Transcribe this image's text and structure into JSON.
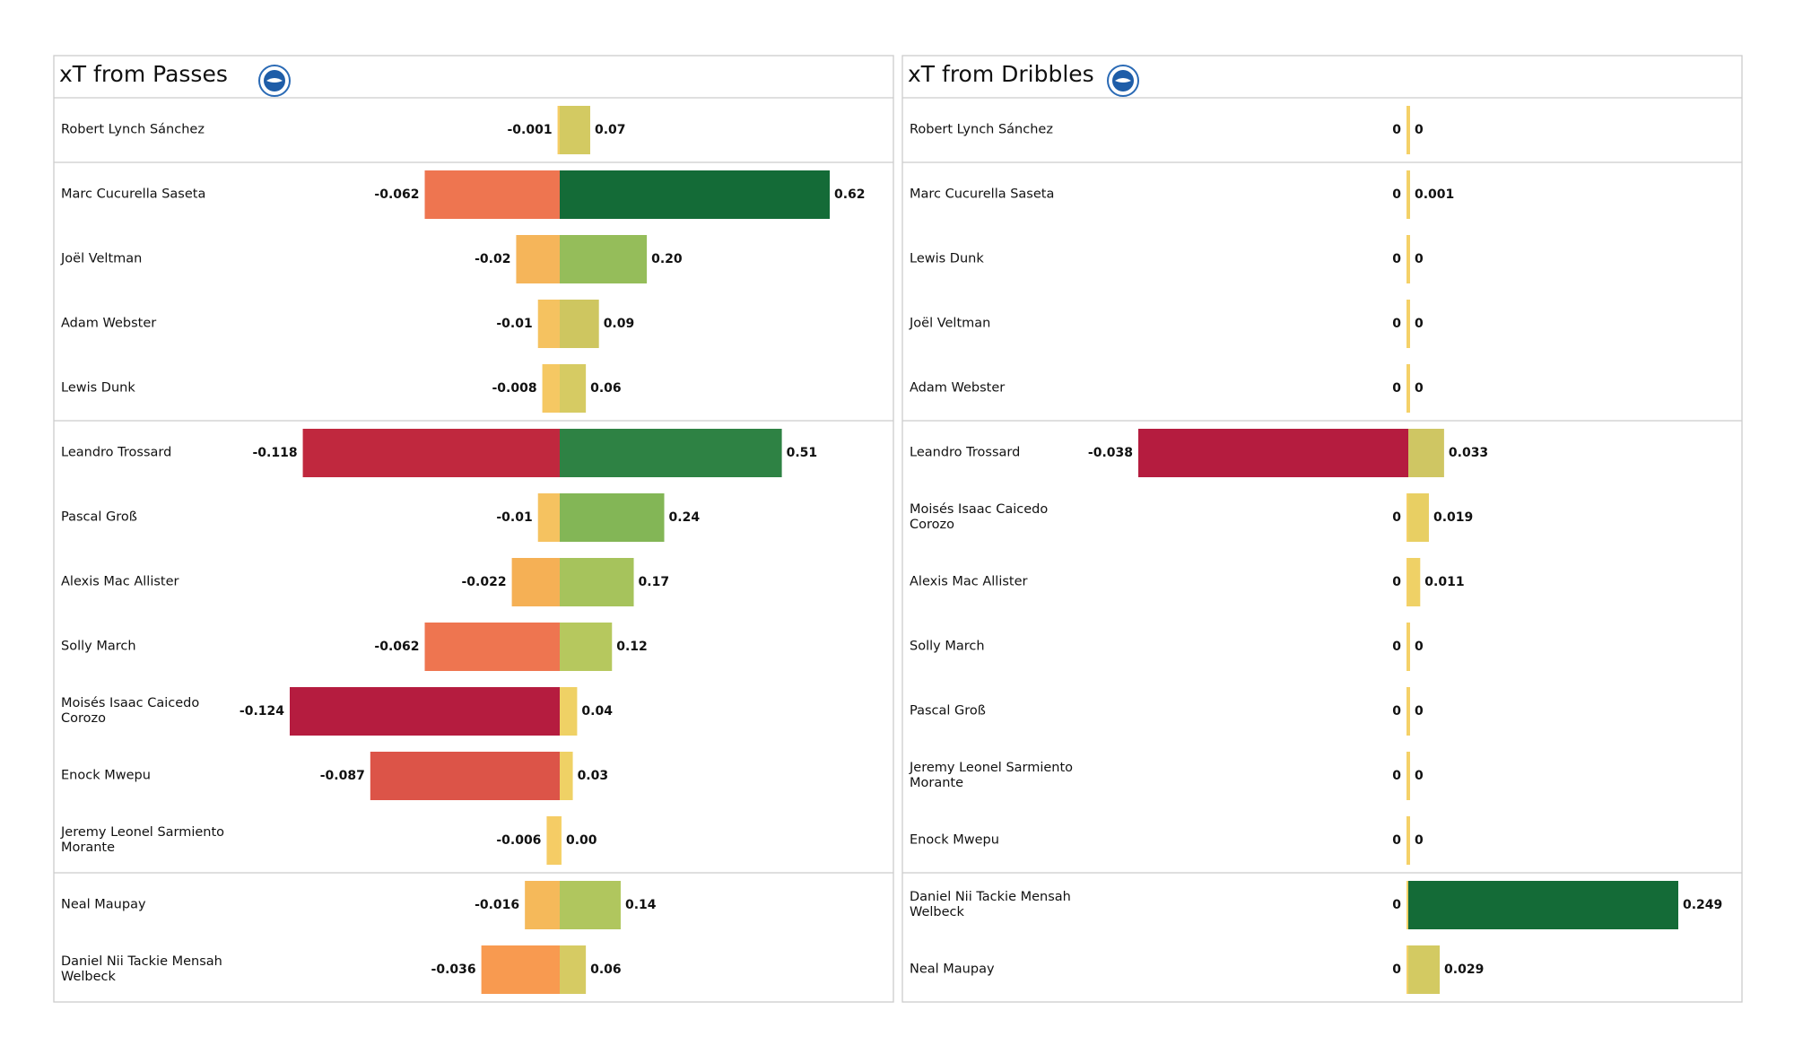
{
  "chart_data": [
    {
      "type": "diverging-bar",
      "title": "xT from Passes",
      "categories": [
        "Robert Lynch Sánchez",
        "Marc Cucurella Saseta",
        "Joël Veltman",
        "Adam Webster",
        "Lewis Dunk",
        "Leandro Trossard",
        "Pascal Groß",
        "Alexis Mac Allister",
        "Solly March",
        "Moisés Isaac Caicedo Corozo",
        "Enock Mwepu",
        "Jeremy Leonel Sarmiento Morante",
        "Neal Maupay",
        "Daniel Nii Tackie Mensah Welbeck"
      ],
      "series": [
        {
          "values": [
            -0.001,
            -0.062,
            -0.02,
            -0.01,
            -0.008,
            -0.118,
            -0.01,
            -0.022,
            -0.062,
            -0.124,
            -0.087,
            -0.006,
            -0.016,
            -0.036
          ],
          "colors": [
            "#f5cc65",
            "#ee7550",
            "#f5b55a",
            "#f5c260",
            "#f5c863",
            "#c0283e",
            "#f5c260",
            "#f5b055",
            "#ee7550",
            "#b51c3f",
            "#dc5448",
            "#f5cc65",
            "#f5b95a",
            "#f89a50"
          ]
        },
        {
          "values": [
            0.07,
            0.62,
            0.2,
            0.09,
            0.06,
            0.51,
            0.24,
            0.17,
            0.12,
            0.04,
            0.03,
            0,
            0.14,
            0.06
          ],
          "value_labels": [
            "0.07",
            "0.62",
            "0.20",
            "0.09",
            "0.06",
            "0.51",
            "0.24",
            "0.17",
            "0.12",
            "0.04",
            "0.03",
            "0.00",
            "0.14",
            "0.06"
          ],
          "colors": [
            "#d3ca62",
            "#146b37",
            "#95bd5a",
            "#cec660",
            "#d6cb63",
            "#2e8244",
            "#83b656",
            "#a6c35c",
            "#b6c85e",
            "#efd165",
            "#efd165",
            "#f5d168",
            "#b0c65e",
            "#d6cb63"
          ]
        }
      ]
    },
    {
      "type": "diverging-bar",
      "title": "xT from Dribbles",
      "categories": [
        "Robert Lynch Sánchez",
        "Marc Cucurella Saseta",
        "Lewis Dunk",
        "Joël Veltman",
        "Adam Webster",
        "Leandro Trossard",
        "Moisés Isaac Caicedo Corozo",
        "Alexis Mac Allister",
        "Solly March",
        "Pascal Groß",
        "Jeremy Leonel Sarmiento Morante",
        "Enock Mwepu",
        "Daniel Nii Tackie Mensah Welbeck",
        "Neal Maupay"
      ],
      "series": [
        {
          "values": [
            0,
            0,
            0,
            0,
            0,
            -0.038,
            0,
            0,
            0,
            0,
            0,
            0,
            0,
            0
          ],
          "colors": [
            "#f5d168",
            "#f5d168",
            "#f5d168",
            "#f5d168",
            "#f5d168",
            "#b51c3f",
            "#f5d168",
            "#f5d168",
            "#f5d168",
            "#f5d168",
            "#f5d168",
            "#f5d168",
            "#f5d168",
            "#f5d168"
          ]
        },
        {
          "values": [
            0,
            0.001,
            0,
            0,
            0,
            0.033,
            0.019,
            0.011,
            0,
            0,
            0,
            0,
            0.249,
            0.029
          ],
          "colors": [
            "#f5d168",
            "#f0d166",
            "#f5d168",
            "#f5d168",
            "#f5d168",
            "#cfc663",
            "#e8cf63",
            "#efd166",
            "#f5d168",
            "#f5d168",
            "#f5d168",
            "#f5d168",
            "#146b37",
            "#d3ca62"
          ]
        }
      ]
    }
  ]
}
